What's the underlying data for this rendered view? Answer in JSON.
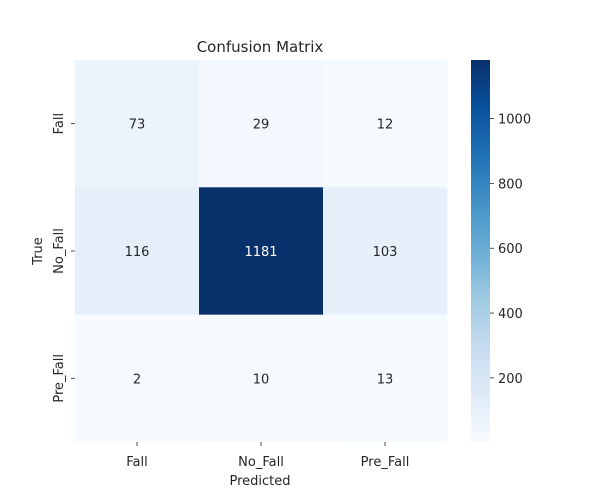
{
  "chart_data": {
    "type": "heatmap",
    "title": "Confusion Matrix",
    "xlabel": "Predicted",
    "ylabel": "True",
    "x_categories": [
      "Fall",
      "No_Fall",
      "Pre_Fall"
    ],
    "y_categories": [
      "Fall",
      "No_Fall",
      "Pre_Fall"
    ],
    "values": [
      [
        73,
        29,
        12
      ],
      [
        116,
        1181,
        103
      ],
      [
        2,
        10,
        13
      ]
    ],
    "colormap": "Blues",
    "colorbar": {
      "vmin": 2,
      "vmax": 1181,
      "ticks": [
        200,
        400,
        600,
        800,
        1000
      ]
    },
    "grid": false,
    "legend": "colorbar-right"
  }
}
